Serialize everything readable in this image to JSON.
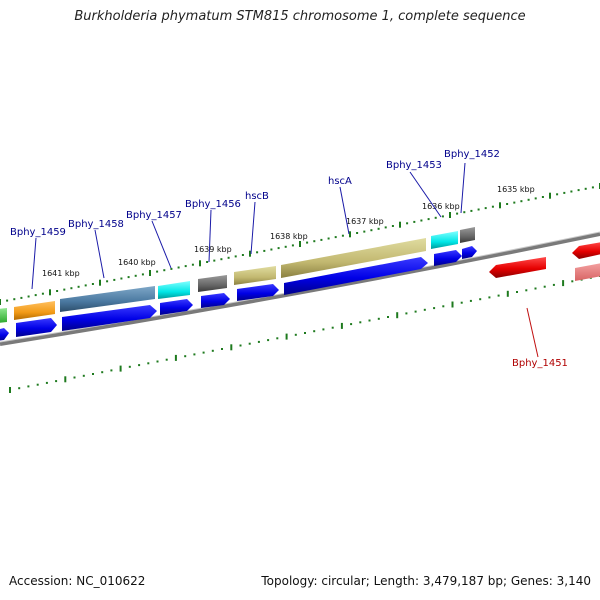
{
  "title": "Burkholderia phymatum STM815 chromosome 1, complete sequence",
  "footer": {
    "accession": "Accession: NC_010622",
    "summary": "Topology: circular; Length: 3,479,187 bp; Genes: 3,140"
  },
  "scale_labels": [
    "1635 kbp",
    "1636 kbp",
    "1637 kbp",
    "1638 kbp",
    "1639 kbp",
    "1640 kbp",
    "1641 kbp"
  ],
  "gene_labels": [
    {
      "text": "Bphy_1452",
      "color": "#00008b"
    },
    {
      "text": "Bphy_1453",
      "color": "#00008b"
    },
    {
      "text": "hscA",
      "color": "#00008b"
    },
    {
      "text": "hscB",
      "color": "#00008b"
    },
    {
      "text": "Bphy_1456",
      "color": "#00008b"
    },
    {
      "text": "Bphy_1457",
      "color": "#00008b"
    },
    {
      "text": "Bphy_1458",
      "color": "#00008b"
    },
    {
      "text": "Bphy_1459",
      "color": "#00008b"
    },
    {
      "text": "Bphy_1451",
      "color": "#b00000"
    }
  ],
  "colors": {
    "backbone": "#7a7a7a",
    "cds_forward": "#0000ee",
    "cds_reverse": "#ee0000",
    "tick": "#1e7a1e"
  }
}
